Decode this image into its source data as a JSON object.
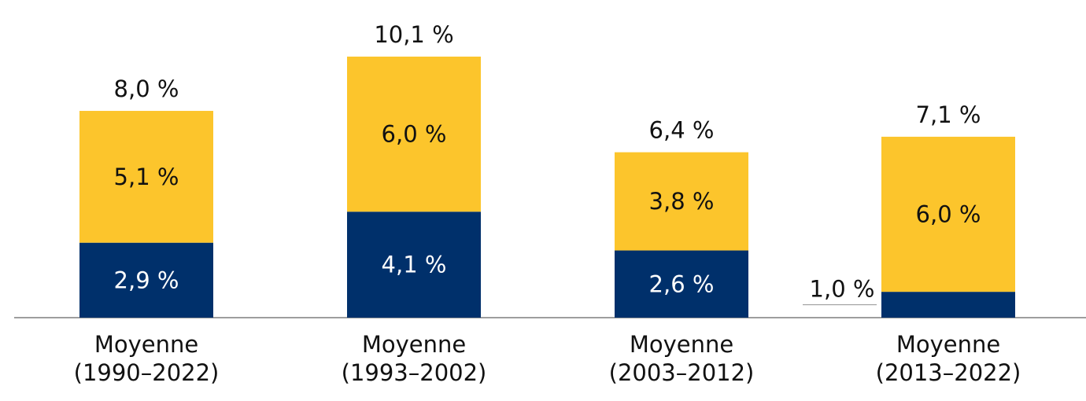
{
  "chart_data": {
    "type": "bar",
    "stacked": true,
    "title": "",
    "xlabel": "",
    "ylabel": "",
    "ylim": [
      0,
      10.1
    ],
    "grid": false,
    "categories": [
      [
        "Moyenne",
        "(1990–2022)"
      ],
      [
        "Moyenne",
        "(1993–2002)"
      ],
      [
        "Moyenne",
        "(2003–2012)"
      ],
      [
        "Moyenne",
        "(2013–2022)"
      ]
    ],
    "series": [
      {
        "name": "bottom",
        "color": "#00306B",
        "values": [
          2.9,
          4.1,
          2.6,
          1.0
        ],
        "labels": [
          "2,9 %",
          "4,1 %",
          "2,6 %",
          "1,0 %"
        ]
      },
      {
        "name": "top",
        "color": "#FCC52C",
        "values": [
          5.1,
          6.0,
          3.8,
          6.0
        ],
        "labels": [
          "5,1 %",
          "6,0 %",
          "3,8 %",
          "6,0 %"
        ]
      }
    ],
    "totals": [
      8.0,
      10.1,
      6.4,
      7.1
    ],
    "total_labels": [
      "8,0 %",
      "10,1 %",
      "6,4 %",
      "7,1 %"
    ]
  }
}
